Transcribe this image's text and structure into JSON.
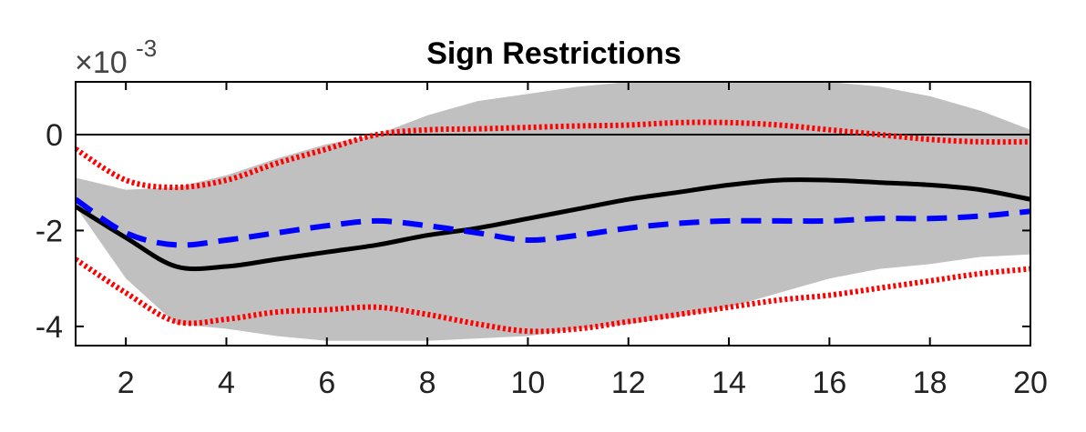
{
  "chart_data": {
    "type": "line",
    "title": "Sign Restrictions",
    "exponent_label": "×10",
    "exponent_power": "-3",
    "x_ticks": [
      "2",
      "4",
      "6",
      "8",
      "10",
      "12",
      "14",
      "16",
      "18",
      "20"
    ],
    "y_ticks": [
      "0",
      "-2",
      "-4"
    ],
    "xlim": [
      1,
      20
    ],
    "ylim": [
      -4.4,
      1.1
    ],
    "x": [
      1,
      2,
      3,
      4,
      5,
      6,
      7,
      8,
      9,
      10,
      11,
      12,
      13,
      14,
      15,
      16,
      17,
      18,
      19,
      20
    ],
    "band": {
      "upper": [
        -0.9,
        -1.15,
        -1.1,
        -0.85,
        -0.5,
        -0.2,
        0.0,
        0.4,
        0.7,
        0.85,
        1.0,
        1.1,
        1.1,
        1.1,
        1.1,
        1.1,
        1.0,
        0.8,
        0.5,
        0.1
      ],
      "lower": [
        -1.5,
        -3.0,
        -3.95,
        -4.05,
        -4.2,
        -4.3,
        -4.3,
        -4.3,
        -4.25,
        -4.2,
        -4.05,
        -3.95,
        -3.8,
        -3.6,
        -3.3,
        -3.0,
        -2.8,
        -2.7,
        -2.55,
        -2.5
      ],
      "color": "#c0c0c0"
    },
    "series": [
      {
        "style": "solid",
        "color": "#000000",
        "values": [
          -1.5,
          -2.15,
          -2.75,
          -2.75,
          -2.6,
          -2.45,
          -2.3,
          -2.1,
          -1.95,
          -1.75,
          -1.55,
          -1.35,
          -1.2,
          -1.05,
          -0.95,
          -0.95,
          -1.0,
          -1.05,
          -1.15,
          -1.35
        ]
      },
      {
        "style": "dashed",
        "color": "#0000ff",
        "values": [
          -1.35,
          -2.05,
          -2.3,
          -2.2,
          -2.05,
          -1.9,
          -1.8,
          -1.9,
          -2.05,
          -2.2,
          -2.1,
          -1.95,
          -1.85,
          -1.8,
          -1.8,
          -1.8,
          -1.75,
          -1.75,
          -1.7,
          -1.6
        ]
      },
      {
        "style": "dotted",
        "color": "#ff0000",
        "values": [
          -0.3,
          -0.95,
          -1.1,
          -0.95,
          -0.6,
          -0.3,
          0.0,
          0.1,
          0.12,
          0.15,
          0.18,
          0.2,
          0.25,
          0.25,
          0.2,
          0.1,
          0.0,
          -0.1,
          -0.15,
          -0.15
        ]
      },
      {
        "style": "dotted",
        "color": "#ff0000",
        "values": [
          -2.6,
          -3.3,
          -3.9,
          -3.85,
          -3.7,
          -3.65,
          -3.6,
          -3.75,
          -3.95,
          -4.1,
          -4.05,
          -3.9,
          -3.75,
          -3.6,
          -3.45,
          -3.35,
          -3.2,
          -3.05,
          -2.9,
          -2.8
        ]
      }
    ],
    "zero_line": 0,
    "grid": false
  }
}
